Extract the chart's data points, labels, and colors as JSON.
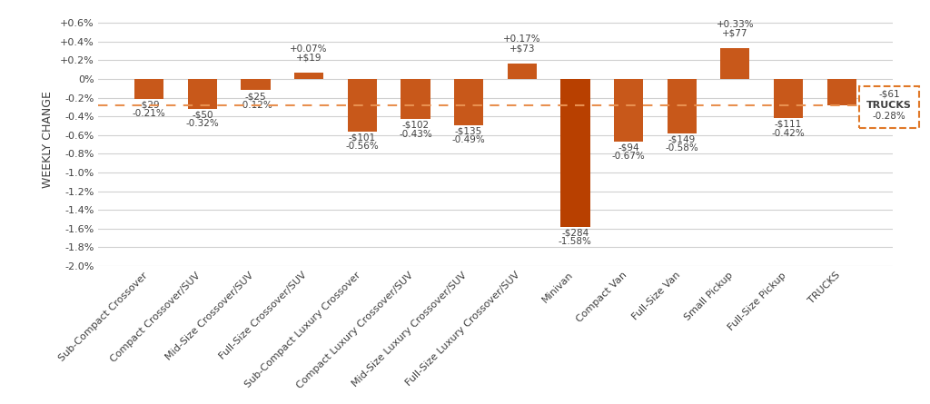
{
  "categories": [
    "Sub-Compact Crossover",
    "Compact Crossover/SUV",
    "Mid-Size Crossover/SUV",
    "Full-Size Crossover/SUV",
    "Sub-Compact Luxury Crossover",
    "Compact Luxury Crossover/SUV",
    "Mid-Size Luxury Crossover/SUV",
    "Full-Size Luxury Crossover/SUV",
    "Minivan",
    "Compact Van",
    "Full-Size Van",
    "Small Pickup",
    "Full-Size Pickup",
    "TRUCKS"
  ],
  "pct_values": [
    -0.0021,
    -0.0032,
    -0.0012,
    0.0007,
    -0.0056,
    -0.0043,
    -0.0049,
    0.0017,
    -0.0158,
    -0.0067,
    -0.0058,
    0.0033,
    -0.0042,
    -0.0028
  ],
  "dollar_labels": [
    "-$29",
    "-$50",
    "-$25",
    "+$19",
    "-$101",
    "-$102",
    "-$135",
    "+$73",
    "-$284",
    "-$94",
    "-$149",
    "+$77",
    "-$111",
    "-$61"
  ],
  "pct_labels": [
    "-0.21%",
    "-0.32%",
    "-0.12%",
    "+0.07%",
    "-0.56%",
    "-0.43%",
    "-0.49%",
    "+0.17%",
    "-1.58%",
    "-0.67%",
    "-0.58%",
    "+0.33%",
    "-0.42%",
    "-0.28%"
  ],
  "bar_colors": [
    "#c8581a",
    "#c8581a",
    "#c8581a",
    "#c8581a",
    "#c8581a",
    "#c8581a",
    "#c8581a",
    "#c8581a",
    "#b84000",
    "#c8581a",
    "#c8581a",
    "#c8581a",
    "#c8581a",
    "#c8581a"
  ],
  "trucks_outline_color": "#e07828",
  "dashed_line_value": -0.0028,
  "dashed_line_color": "#e89050",
  "ylabel": "WEEKLY CHANGE",
  "ylim": [
    -0.02,
    0.007
  ],
  "yticks": [
    -0.02,
    -0.018,
    -0.016,
    -0.014,
    -0.012,
    -0.01,
    -0.008,
    -0.006,
    -0.004,
    -0.002,
    0.0,
    0.002,
    0.004,
    0.006
  ],
  "background_color": "#ffffff",
  "grid_color": "#d0d0d0",
  "text_color": "#404040",
  "label_fontsize": 7.5,
  "tick_fontsize": 8,
  "ylabel_fontsize": 9
}
